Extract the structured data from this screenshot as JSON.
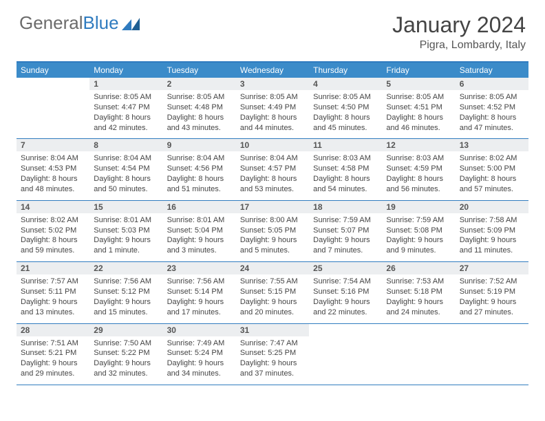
{
  "logo": {
    "text1": "General",
    "text2": "Blue"
  },
  "title": "January 2024",
  "location": "Pigra, Lombardy, Italy",
  "colors": {
    "header_blue": "#3b8bc9",
    "rule_blue": "#2f7bbf",
    "daynum_bg": "#eceef0",
    "logo_grey": "#6b6b6b"
  },
  "weekdays": [
    "Sunday",
    "Monday",
    "Tuesday",
    "Wednesday",
    "Thursday",
    "Friday",
    "Saturday"
  ],
  "weeks": [
    [
      {
        "n": "",
        "sr": "",
        "ss": "",
        "dl1": "",
        "dl2": ""
      },
      {
        "n": "1",
        "sr": "Sunrise: 8:05 AM",
        "ss": "Sunset: 4:47 PM",
        "dl1": "Daylight: 8 hours",
        "dl2": "and 42 minutes."
      },
      {
        "n": "2",
        "sr": "Sunrise: 8:05 AM",
        "ss": "Sunset: 4:48 PM",
        "dl1": "Daylight: 8 hours",
        "dl2": "and 43 minutes."
      },
      {
        "n": "3",
        "sr": "Sunrise: 8:05 AM",
        "ss": "Sunset: 4:49 PM",
        "dl1": "Daylight: 8 hours",
        "dl2": "and 44 minutes."
      },
      {
        "n": "4",
        "sr": "Sunrise: 8:05 AM",
        "ss": "Sunset: 4:50 PM",
        "dl1": "Daylight: 8 hours",
        "dl2": "and 45 minutes."
      },
      {
        "n": "5",
        "sr": "Sunrise: 8:05 AM",
        "ss": "Sunset: 4:51 PM",
        "dl1": "Daylight: 8 hours",
        "dl2": "and 46 minutes."
      },
      {
        "n": "6",
        "sr": "Sunrise: 8:05 AM",
        "ss": "Sunset: 4:52 PM",
        "dl1": "Daylight: 8 hours",
        "dl2": "and 47 minutes."
      }
    ],
    [
      {
        "n": "7",
        "sr": "Sunrise: 8:04 AM",
        "ss": "Sunset: 4:53 PM",
        "dl1": "Daylight: 8 hours",
        "dl2": "and 48 minutes."
      },
      {
        "n": "8",
        "sr": "Sunrise: 8:04 AM",
        "ss": "Sunset: 4:54 PM",
        "dl1": "Daylight: 8 hours",
        "dl2": "and 50 minutes."
      },
      {
        "n": "9",
        "sr": "Sunrise: 8:04 AM",
        "ss": "Sunset: 4:56 PM",
        "dl1": "Daylight: 8 hours",
        "dl2": "and 51 minutes."
      },
      {
        "n": "10",
        "sr": "Sunrise: 8:04 AM",
        "ss": "Sunset: 4:57 PM",
        "dl1": "Daylight: 8 hours",
        "dl2": "and 53 minutes."
      },
      {
        "n": "11",
        "sr": "Sunrise: 8:03 AM",
        "ss": "Sunset: 4:58 PM",
        "dl1": "Daylight: 8 hours",
        "dl2": "and 54 minutes."
      },
      {
        "n": "12",
        "sr": "Sunrise: 8:03 AM",
        "ss": "Sunset: 4:59 PM",
        "dl1": "Daylight: 8 hours",
        "dl2": "and 56 minutes."
      },
      {
        "n": "13",
        "sr": "Sunrise: 8:02 AM",
        "ss": "Sunset: 5:00 PM",
        "dl1": "Daylight: 8 hours",
        "dl2": "and 57 minutes."
      }
    ],
    [
      {
        "n": "14",
        "sr": "Sunrise: 8:02 AM",
        "ss": "Sunset: 5:02 PM",
        "dl1": "Daylight: 8 hours",
        "dl2": "and 59 minutes."
      },
      {
        "n": "15",
        "sr": "Sunrise: 8:01 AM",
        "ss": "Sunset: 5:03 PM",
        "dl1": "Daylight: 9 hours",
        "dl2": "and 1 minute."
      },
      {
        "n": "16",
        "sr": "Sunrise: 8:01 AM",
        "ss": "Sunset: 5:04 PM",
        "dl1": "Daylight: 9 hours",
        "dl2": "and 3 minutes."
      },
      {
        "n": "17",
        "sr": "Sunrise: 8:00 AM",
        "ss": "Sunset: 5:05 PM",
        "dl1": "Daylight: 9 hours",
        "dl2": "and 5 minutes."
      },
      {
        "n": "18",
        "sr": "Sunrise: 7:59 AM",
        "ss": "Sunset: 5:07 PM",
        "dl1": "Daylight: 9 hours",
        "dl2": "and 7 minutes."
      },
      {
        "n": "19",
        "sr": "Sunrise: 7:59 AM",
        "ss": "Sunset: 5:08 PM",
        "dl1": "Daylight: 9 hours",
        "dl2": "and 9 minutes."
      },
      {
        "n": "20",
        "sr": "Sunrise: 7:58 AM",
        "ss": "Sunset: 5:09 PM",
        "dl1": "Daylight: 9 hours",
        "dl2": "and 11 minutes."
      }
    ],
    [
      {
        "n": "21",
        "sr": "Sunrise: 7:57 AM",
        "ss": "Sunset: 5:11 PM",
        "dl1": "Daylight: 9 hours",
        "dl2": "and 13 minutes."
      },
      {
        "n": "22",
        "sr": "Sunrise: 7:56 AM",
        "ss": "Sunset: 5:12 PM",
        "dl1": "Daylight: 9 hours",
        "dl2": "and 15 minutes."
      },
      {
        "n": "23",
        "sr": "Sunrise: 7:56 AM",
        "ss": "Sunset: 5:14 PM",
        "dl1": "Daylight: 9 hours",
        "dl2": "and 17 minutes."
      },
      {
        "n": "24",
        "sr": "Sunrise: 7:55 AM",
        "ss": "Sunset: 5:15 PM",
        "dl1": "Daylight: 9 hours",
        "dl2": "and 20 minutes."
      },
      {
        "n": "25",
        "sr": "Sunrise: 7:54 AM",
        "ss": "Sunset: 5:16 PM",
        "dl1": "Daylight: 9 hours",
        "dl2": "and 22 minutes."
      },
      {
        "n": "26",
        "sr": "Sunrise: 7:53 AM",
        "ss": "Sunset: 5:18 PM",
        "dl1": "Daylight: 9 hours",
        "dl2": "and 24 minutes."
      },
      {
        "n": "27",
        "sr": "Sunrise: 7:52 AM",
        "ss": "Sunset: 5:19 PM",
        "dl1": "Daylight: 9 hours",
        "dl2": "and 27 minutes."
      }
    ],
    [
      {
        "n": "28",
        "sr": "Sunrise: 7:51 AM",
        "ss": "Sunset: 5:21 PM",
        "dl1": "Daylight: 9 hours",
        "dl2": "and 29 minutes."
      },
      {
        "n": "29",
        "sr": "Sunrise: 7:50 AM",
        "ss": "Sunset: 5:22 PM",
        "dl1": "Daylight: 9 hours",
        "dl2": "and 32 minutes."
      },
      {
        "n": "30",
        "sr": "Sunrise: 7:49 AM",
        "ss": "Sunset: 5:24 PM",
        "dl1": "Daylight: 9 hours",
        "dl2": "and 34 minutes."
      },
      {
        "n": "31",
        "sr": "Sunrise: 7:47 AM",
        "ss": "Sunset: 5:25 PM",
        "dl1": "Daylight: 9 hours",
        "dl2": "and 37 minutes."
      },
      {
        "n": "",
        "sr": "",
        "ss": "",
        "dl1": "",
        "dl2": ""
      },
      {
        "n": "",
        "sr": "",
        "ss": "",
        "dl1": "",
        "dl2": ""
      },
      {
        "n": "",
        "sr": "",
        "ss": "",
        "dl1": "",
        "dl2": ""
      }
    ]
  ]
}
